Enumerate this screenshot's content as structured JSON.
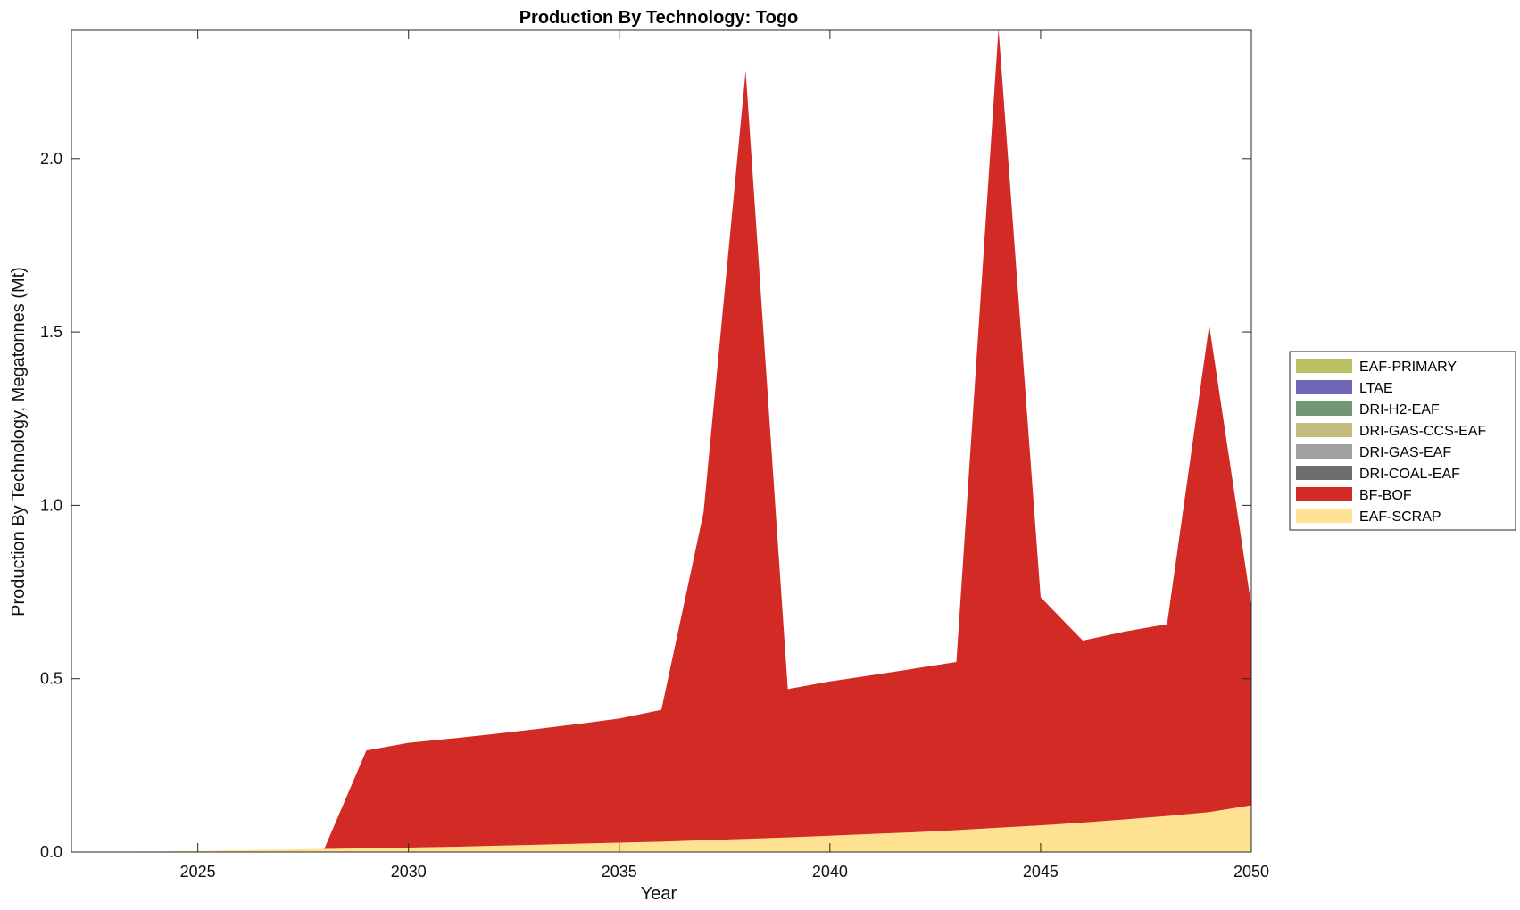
{
  "chart_data": {
    "type": "area",
    "stacked": true,
    "title": "Production By Technology: Togo",
    "xlabel": "Year",
    "ylabel": "Production By Technology, Megatonnes (Mt)",
    "xlim": [
      2022,
      2050
    ],
    "ylim": [
      0,
      2.37
    ],
    "xticks": [
      "2025",
      "2030",
      "2035",
      "2040",
      "2045",
      "2050"
    ],
    "yticks": [
      "0.0",
      "0.5",
      "1.0",
      "1.5",
      "2.0"
    ],
    "legend_position": "right",
    "x": [
      2022,
      2023,
      2024,
      2025,
      2026,
      2027,
      2028,
      2029,
      2030,
      2031,
      2032,
      2033,
      2034,
      2035,
      2036,
      2037,
      2038,
      2039,
      2040,
      2041,
      2042,
      2043,
      2044,
      2045,
      2046,
      2047,
      2048,
      2049,
      2050
    ],
    "series": [
      {
        "name": "EAF-SCRAP",
        "color": "#FFE291",
        "values": [
          0.0,
          0.001,
          0.002,
          0.003,
          0.005,
          0.007,
          0.009,
          0.011,
          0.013,
          0.015,
          0.018,
          0.021,
          0.024,
          0.027,
          0.03,
          0.034,
          0.038,
          0.042,
          0.047,
          0.052,
          0.057,
          0.063,
          0.07,
          0.077,
          0.085,
          0.094,
          0.104,
          0.115,
          0.135
        ]
      },
      {
        "name": "BF-BOF",
        "color": "#D22B25",
        "values": [
          0.0,
          0.0,
          0.0,
          0.0,
          0.0,
          0.0,
          0.0,
          0.282,
          0.302,
          0.312,
          0.322,
          0.333,
          0.345,
          0.358,
          0.38,
          0.945,
          2.215,
          0.428,
          0.445,
          0.458,
          0.472,
          0.485,
          2.305,
          0.658,
          0.525,
          0.542,
          0.553,
          1.405,
          0.575
        ]
      },
      {
        "name": "DRI-COAL-EAF",
        "color": "#6E6E6E",
        "values": [
          0,
          0,
          0,
          0,
          0,
          0,
          0,
          0,
          0,
          0,
          0,
          0,
          0,
          0,
          0,
          0,
          0,
          0,
          0,
          0,
          0,
          0,
          0,
          0,
          0,
          0,
          0,
          0,
          0
        ]
      },
      {
        "name": "DRI-GAS-EAF",
        "color": "#A0A0A0",
        "values": [
          0,
          0,
          0,
          0,
          0,
          0,
          0,
          0,
          0,
          0,
          0,
          0,
          0,
          0,
          0,
          0,
          0,
          0,
          0,
          0,
          0,
          0,
          0,
          0,
          0,
          0,
          0,
          0,
          0
        ]
      },
      {
        "name": "DRI-GAS-CCS-EAF",
        "color": "#C3BA7E",
        "values": [
          0,
          0,
          0,
          0,
          0,
          0,
          0,
          0,
          0,
          0,
          0,
          0,
          0,
          0,
          0,
          0,
          0,
          0,
          0,
          0,
          0,
          0,
          0,
          0,
          0,
          0,
          0,
          0,
          0
        ]
      },
      {
        "name": "DRI-H2-EAF",
        "color": "#739676",
        "values": [
          0,
          0,
          0,
          0,
          0,
          0,
          0,
          0,
          0,
          0,
          0,
          0,
          0,
          0,
          0,
          0,
          0,
          0,
          0,
          0,
          0,
          0,
          0,
          0,
          0,
          0,
          0,
          0,
          0
        ]
      },
      {
        "name": "LTAE",
        "color": "#7066B7",
        "values": [
          0,
          0,
          0,
          0,
          0,
          0,
          0,
          0,
          0,
          0,
          0,
          0,
          0,
          0,
          0,
          0,
          0,
          0,
          0,
          0,
          0,
          0,
          0,
          0,
          0,
          0,
          0,
          0,
          0
        ]
      },
      {
        "name": "EAF-PRIMARY",
        "color": "#BAC061",
        "values": [
          0,
          0,
          0,
          0,
          0,
          0,
          0,
          0,
          0,
          0,
          0,
          0,
          0,
          0,
          0,
          0,
          0,
          0,
          0,
          0,
          0,
          0,
          0,
          0,
          0,
          0,
          0,
          0,
          0
        ]
      }
    ],
    "legend_order": [
      "EAF-PRIMARY",
      "LTAE",
      "DRI-H2-EAF",
      "DRI-GAS-CCS-EAF",
      "DRI-GAS-EAF",
      "DRI-COAL-EAF",
      "BF-BOF",
      "EAF-SCRAP"
    ]
  }
}
